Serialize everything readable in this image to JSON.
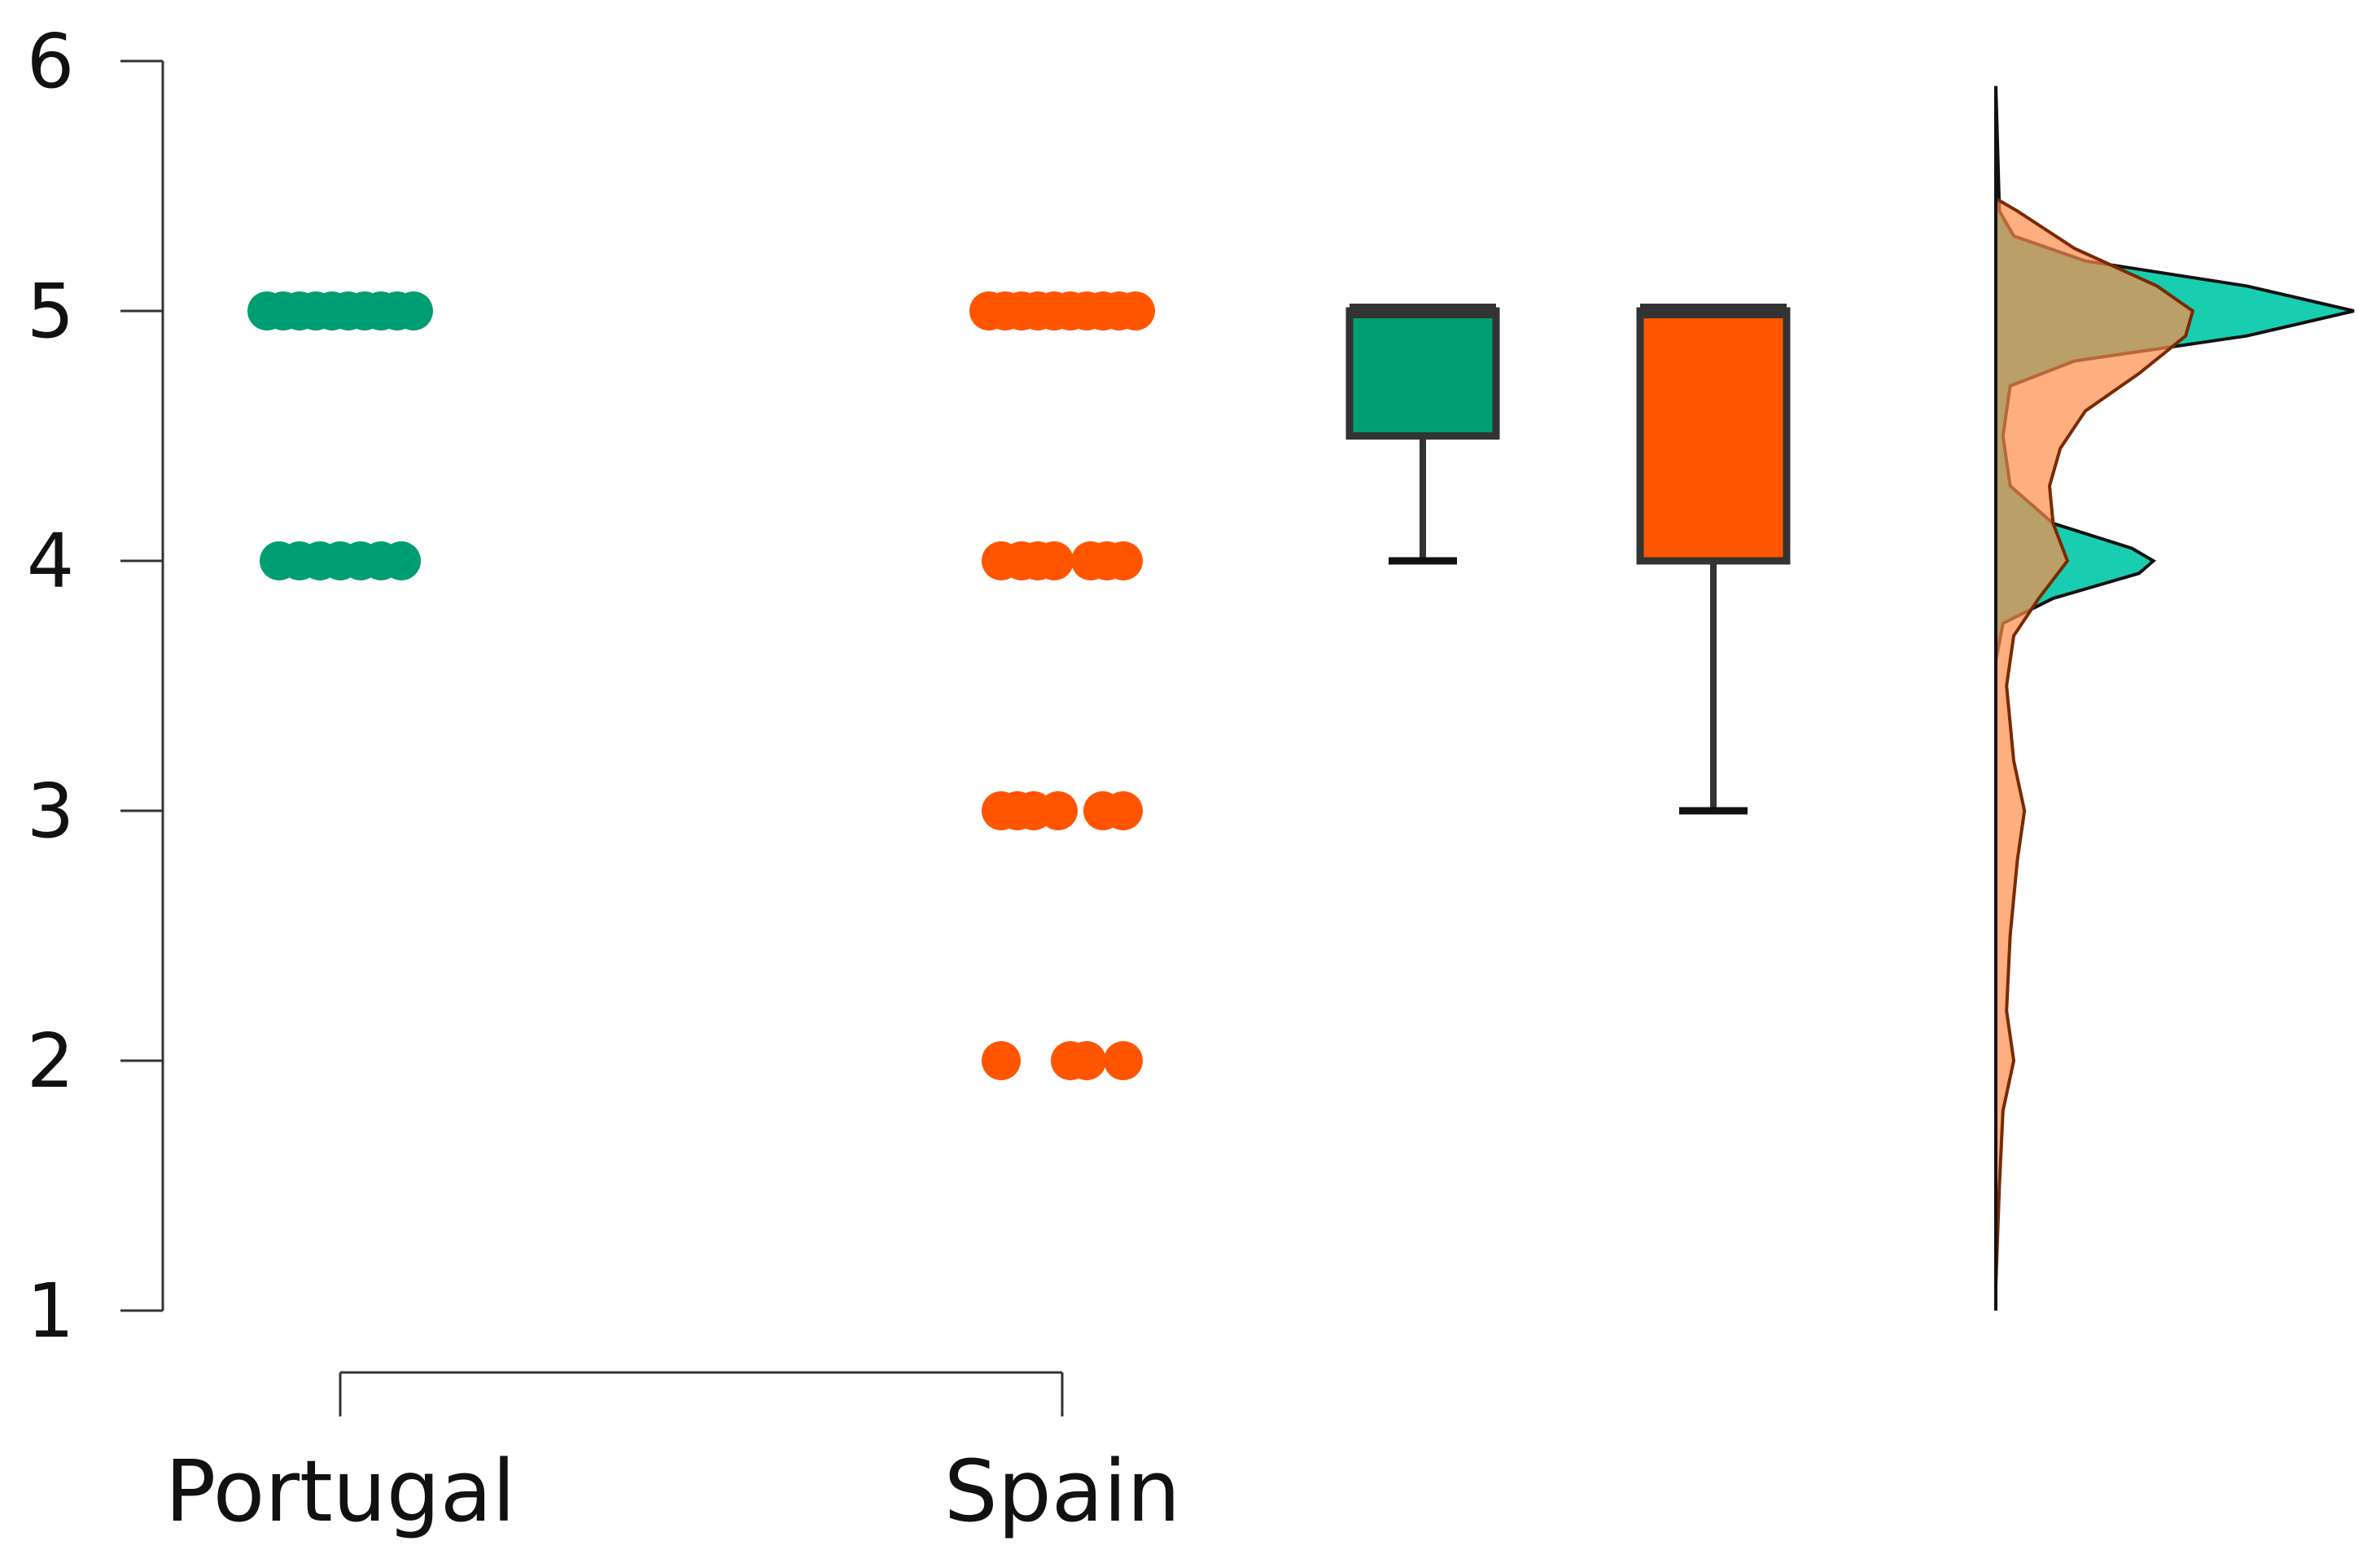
{
  "chart_data": {
    "type": "raincloud",
    "title": "",
    "xlabel": "",
    "ylabel": "",
    "ylim": [
      1,
      6
    ],
    "y_ticks": [
      1,
      2,
      3,
      4,
      5,
      6
    ],
    "grid": false,
    "legend": "none",
    "categories": [
      "Portugal",
      "Spain"
    ],
    "series": [
      {
        "color": "#009E73",
        "density_color": "#00C9A7",
        "points": [
          {
            "y": 5,
            "jitter": [
              -0.9,
              -0.7,
              -0.5,
              -0.3,
              -0.1,
              0.1,
              0.3,
              0.5,
              0.7,
              0.9
            ]
          },
          {
            "y": 4,
            "jitter": [
              -0.75,
              -0.5,
              -0.25,
              0,
              0.25,
              0.5,
              0.75
            ]
          }
        ],
        "box": {
          "min": 4,
          "q1": 4.5,
          "median": 5,
          "q3": 5,
          "max": 5
        },
        "density": [
          [
            1.0,
            0.0
          ],
          [
            3.6,
            0.0
          ],
          [
            3.75,
            0.02
          ],
          [
            3.85,
            0.16
          ],
          [
            3.95,
            0.4
          ],
          [
            4.0,
            0.44
          ],
          [
            4.05,
            0.38
          ],
          [
            4.15,
            0.16
          ],
          [
            4.3,
            0.04
          ],
          [
            4.5,
            0.02
          ],
          [
            4.7,
            0.04
          ],
          [
            4.8,
            0.22
          ],
          [
            4.9,
            0.7
          ],
          [
            5.0,
            1.0
          ],
          [
            5.1,
            0.7
          ],
          [
            5.2,
            0.25
          ],
          [
            5.3,
            0.05
          ],
          [
            5.4,
            0.01
          ],
          [
            5.9,
            0.0
          ]
        ]
      },
      {
        "color": "#FF5500",
        "density_color": "#FF8C4A",
        "points": [
          {
            "y": 5,
            "jitter": [
              -0.9,
              -0.7,
              -0.5,
              -0.3,
              -0.1,
              0.1,
              0.3,
              0.5,
              0.7,
              0.9
            ]
          },
          {
            "y": 4,
            "jitter": [
              -0.75,
              -0.5,
              -0.3,
              -0.1,
              0.35,
              0.55,
              0.75
            ]
          },
          {
            "y": 3,
            "jitter": [
              -0.75,
              -0.55,
              -0.35,
              -0.05,
              0.5,
              0.75
            ]
          },
          {
            "y": 2,
            "jitter": [
              -0.75,
              0.1,
              0.3,
              0.75
            ]
          }
        ],
        "box": {
          "min": 3,
          "q1": 4,
          "median": 5,
          "q3": 5,
          "max": 5
        },
        "density": [
          [
            1.1,
            0.0
          ],
          [
            1.5,
            0.01
          ],
          [
            1.8,
            0.02
          ],
          [
            2.0,
            0.05
          ],
          [
            2.2,
            0.03
          ],
          [
            2.5,
            0.04
          ],
          [
            2.8,
            0.06
          ],
          [
            3.0,
            0.08
          ],
          [
            3.2,
            0.05
          ],
          [
            3.5,
            0.03
          ],
          [
            3.7,
            0.05
          ],
          [
            3.85,
            0.12
          ],
          [
            4.0,
            0.2
          ],
          [
            4.15,
            0.16
          ],
          [
            4.3,
            0.15
          ],
          [
            4.45,
            0.18
          ],
          [
            4.6,
            0.25
          ],
          [
            4.75,
            0.4
          ],
          [
            4.9,
            0.53
          ],
          [
            5.0,
            0.55
          ],
          [
            5.1,
            0.45
          ],
          [
            5.25,
            0.22
          ],
          [
            5.4,
            0.06
          ],
          [
            5.45,
            0.0
          ]
        ]
      }
    ]
  }
}
